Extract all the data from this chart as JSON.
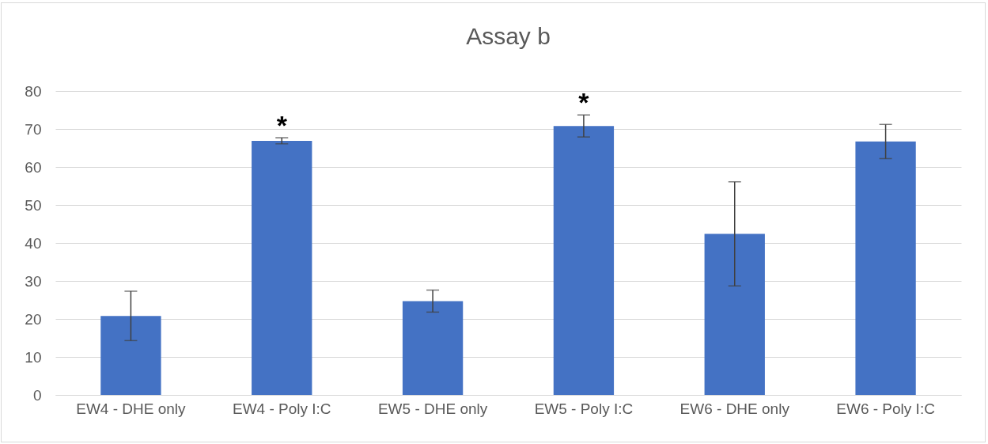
{
  "chart_data": {
    "type": "bar",
    "title": "Assay b",
    "categories": [
      "EW4 - DHE only",
      "EW4 - Poly I:C",
      "EW5 - DHE only",
      "EW5 - Poly I:C",
      "EW6 - DHE only",
      "EW6 - Poly I:C"
    ],
    "values": [
      20.8,
      66.9,
      24.7,
      70.8,
      42.4,
      66.7
    ],
    "errors": [
      6.5,
      0.8,
      2.9,
      2.9,
      13.7,
      4.5
    ],
    "color": "#4472c4",
    "ylim": [
      0,
      80
    ],
    "yticks": [
      0,
      10,
      20,
      30,
      40,
      50,
      60,
      70,
      80
    ],
    "grid": "y",
    "annotations": [
      "*",
      "*"
    ]
  }
}
